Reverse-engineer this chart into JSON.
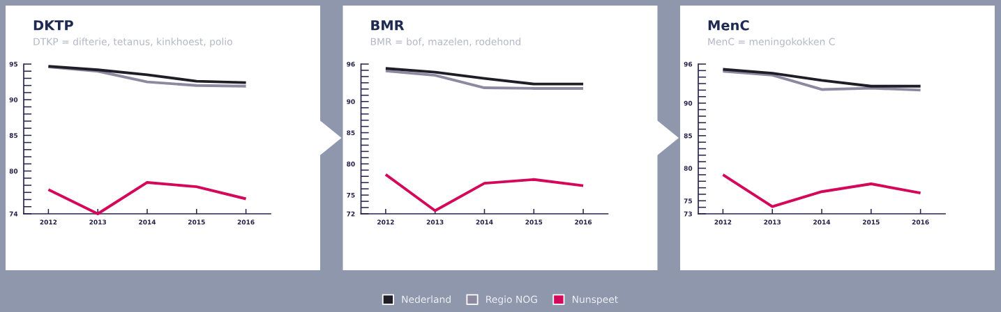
{
  "chart_data": [
    {
      "type": "line",
      "title": "DKTP",
      "subtitle": "DTKP = difterie, tetanus, kinkhoest, polio",
      "categories": [
        "2012",
        "2013",
        "2014",
        "2015",
        "2016"
      ],
      "series": [
        {
          "name": "Nederland",
          "color": "#1f1d26",
          "values": [
            94.7,
            94.2,
            93.5,
            92.6,
            92.4
          ]
        },
        {
          "name": "Regio NOG",
          "color": "#8c89a1",
          "values": [
            94.6,
            94.0,
            92.5,
            92.0,
            91.9
          ]
        },
        {
          "name": "Nunspeet",
          "color": "#d4075a",
          "values": [
            77.4,
            74.0,
            78.4,
            77.8,
            76.1
          ]
        }
      ],
      "ylim": [
        74,
        95
      ],
      "yticks": [
        {
          "value": 74,
          "label": "74"
        },
        {
          "value": 75,
          "label": null
        },
        {
          "value": 76,
          "label": null
        },
        {
          "value": 77,
          "label": null
        },
        {
          "value": 78,
          "label": null
        },
        {
          "value": 79,
          "label": null
        },
        80,
        {
          "value": 81,
          "label": null
        },
        {
          "value": 82,
          "label": null
        },
        {
          "value": 83,
          "label": null
        },
        {
          "value": 84,
          "label": null
        },
        85,
        {
          "value": 86,
          "label": null
        },
        {
          "value": 87,
          "label": null
        },
        {
          "value": 88,
          "label": null
        },
        {
          "value": 89,
          "label": null
        },
        90,
        {
          "value": 91,
          "label": null
        },
        {
          "value": 92,
          "label": null
        },
        {
          "value": 93,
          "label": null
        },
        {
          "value": 94,
          "label": null
        },
        95
      ],
      "legend": "bottom",
      "marker": "none",
      "line_style": "solid"
    },
    {
      "type": "line",
      "title": "BMR",
      "subtitle": "BMR = bof, mazelen, rodehond",
      "categories": [
        "2012",
        "2013",
        "2014",
        "2015",
        "2016"
      ],
      "series": [
        {
          "color": "#1f1d26",
          "values": [
            95.3,
            94.7,
            93.7,
            92.8,
            92.8
          ]
        },
        {
          "color": "#8c89a1",
          "values": [
            94.9,
            94.2,
            92.2,
            92.1,
            92.1
          ]
        },
        {
          "color": "#d4075a",
          "values": [
            78.3,
            72.5,
            76.9,
            77.5,
            76.5
          ]
        }
      ],
      "ylim": [
        72,
        96
      ],
      "yticks": [
        72,
        {
          "value": 73,
          "label": null
        },
        {
          "value": 74,
          "label": null
        },
        75,
        {
          "value": 76,
          "label": null
        },
        {
          "value": 77,
          "label": null
        },
        {
          "value": 78,
          "label": null
        },
        {
          "value": 79,
          "label": null
        },
        80,
        {
          "value": 81,
          "label": null
        },
        {
          "value": 82,
          "label": null
        },
        {
          "value": 83,
          "label": null
        },
        {
          "value": 84,
          "label": null
        },
        85,
        {
          "value": 86,
          "label": null
        },
        {
          "value": 87,
          "label": null
        },
        {
          "value": 88,
          "label": null
        },
        {
          "value": 89,
          "label": null
        },
        90,
        {
          "value": 91,
          "label": null
        },
        {
          "value": 92,
          "label": null
        },
        {
          "value": 93,
          "label": null
        },
        {
          "value": 94,
          "label": null
        },
        {
          "value": 95,
          "label": null
        },
        96
      ],
      "marker": "none",
      "line_style": "solid"
    },
    {
      "type": "line",
      "title": "MenC",
      "subtitle": "MenC = meningokokken C",
      "categories": [
        "2012",
        "2013",
        "2014",
        "2015",
        "2016"
      ],
      "series": [
        {
          "color": "#1f1d26",
          "values": [
            95.2,
            94.6,
            93.5,
            92.6,
            92.6
          ]
        },
        {
          "color": "#8c89a1",
          "values": [
            94.9,
            94.3,
            92.1,
            92.3,
            92.0
          ]
        },
        {
          "color": "#d4075a",
          "values": [
            79.0,
            74.1,
            76.4,
            77.6,
            76.2
          ]
        }
      ],
      "ylim": [
        73,
        96
      ],
      "yticks": [
        73,
        {
          "value": 74,
          "label": null
        },
        75,
        {
          "value": 76,
          "label": null
        },
        {
          "value": 77,
          "label": null
        },
        {
          "value": 78,
          "label": null
        },
        {
          "value": 79,
          "label": null
        },
        80,
        {
          "value": 81,
          "label": null
        },
        {
          "value": 82,
          "label": null
        },
        {
          "value": 83,
          "label": null
        },
        {
          "value": 84,
          "label": null
        },
        85,
        {
          "value": 86,
          "label": null
        },
        {
          "value": 87,
          "label": null
        },
        {
          "value": 88,
          "label": null
        },
        {
          "value": 89,
          "label": null
        },
        90,
        {
          "value": 91,
          "label": null
        },
        {
          "value": 92,
          "label": null
        },
        {
          "value": 93,
          "label": null
        },
        {
          "value": 94,
          "label": null
        },
        {
          "value": 95,
          "label": null
        },
        96
      ],
      "marker": "none",
      "line_style": "solid"
    }
  ]
}
